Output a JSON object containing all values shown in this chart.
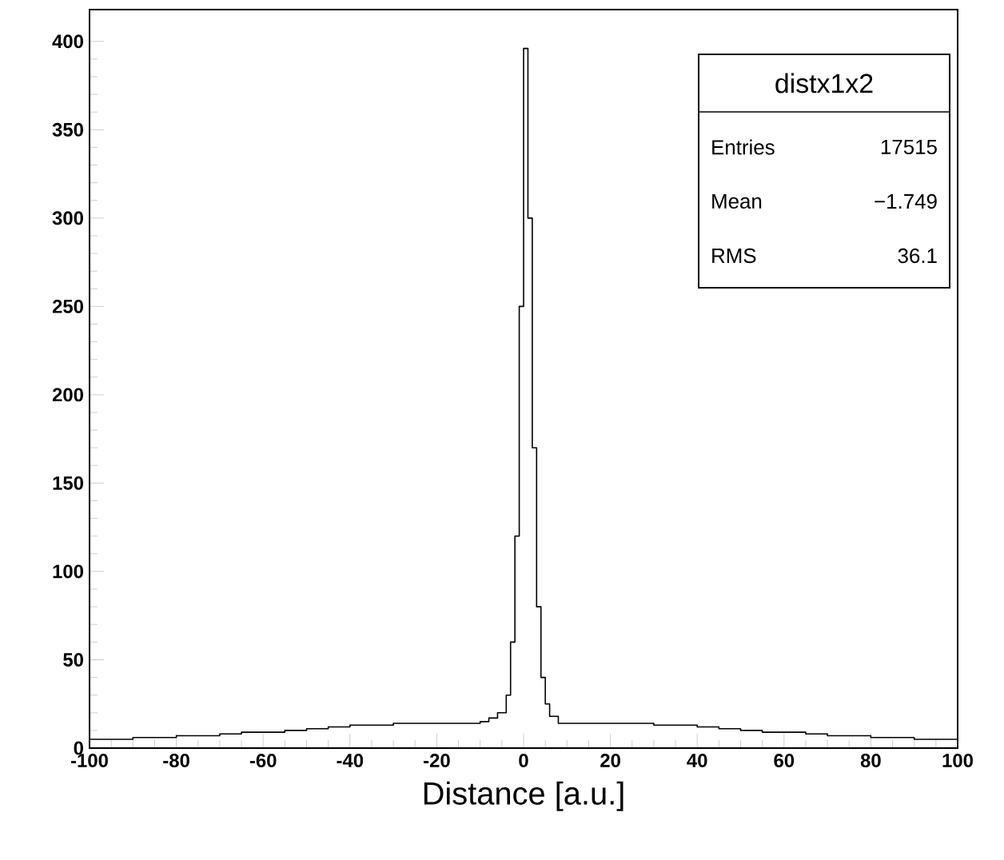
{
  "chart_data": {
    "type": "histogram",
    "xlabel": "Distance [a.u.]",
    "bins": [
      -100,
      -95,
      -90,
      -85,
      -80,
      -75,
      -70,
      -65,
      -60,
      -55,
      -50,
      -45,
      -40,
      -35,
      -30,
      -25,
      -20,
      -15,
      -10,
      -8,
      -6,
      -4,
      -3,
      -2,
      -1,
      0,
      1,
      2,
      3,
      4,
      5,
      6,
      8,
      10,
      15,
      20,
      25,
      30,
      35,
      40,
      45,
      50,
      55,
      60,
      65,
      70,
      75,
      80,
      85,
      90,
      95,
      100
    ],
    "values": [
      5,
      5,
      6,
      6,
      7,
      7,
      8,
      9,
      9,
      10,
      11,
      12,
      13,
      13,
      14,
      14,
      14,
      14,
      15,
      17,
      20,
      30,
      60,
      120,
      250,
      396,
      300,
      170,
      80,
      40,
      25,
      18,
      14,
      14,
      14,
      14,
      14,
      13,
      13,
      12,
      11,
      10,
      9,
      9,
      8,
      7,
      7,
      6,
      6,
      5,
      5
    ],
    "color": "#000000",
    "xlim": [
      -100,
      100
    ],
    "ylim": [
      0,
      418
    ],
    "xticks": [
      -100,
      -80,
      -60,
      -40,
      -20,
      0,
      20,
      40,
      60,
      80,
      100
    ],
    "yticks": [
      0,
      50,
      100,
      150,
      200,
      250,
      300,
      350,
      400
    ],
    "grid": false,
    "annotations": [
      "distx1x2",
      "Entries",
      "17515",
      "Mean",
      "−1.749",
      "RMS",
      "36.1"
    ]
  }
}
